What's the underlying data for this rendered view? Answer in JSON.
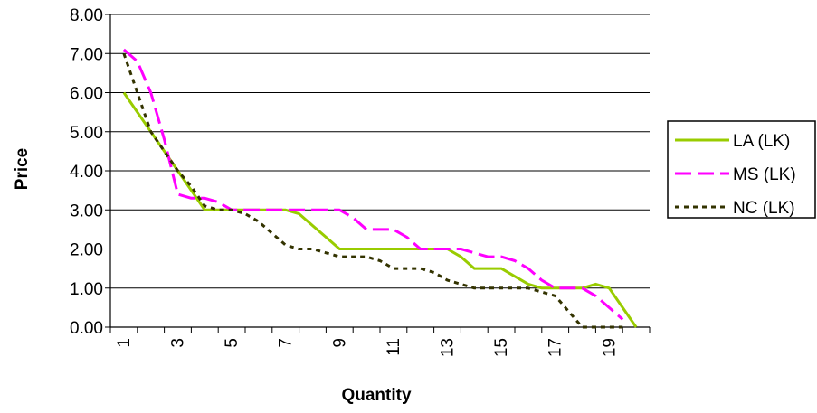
{
  "chart_data": {
    "type": "line",
    "xlabel": "Quantity",
    "ylabel": "Price",
    "ylim": [
      0,
      8
    ],
    "y_ticks": [
      "0.00",
      "1.00",
      "2.00",
      "3.00",
      "4.00",
      "5.00",
      "6.00",
      "7.00",
      "8.00"
    ],
    "x_tick_labels": [
      "1",
      "3",
      "5",
      "7",
      "9",
      "11",
      "13",
      "15",
      "17",
      "19"
    ],
    "grid": "horizontal",
    "legend_position": "right",
    "series": [
      {
        "name": "LA (LK)",
        "color": "#99CC00",
        "style": "solid",
        "points": [
          [
            1,
            6.0
          ],
          [
            1.5,
            5.5
          ],
          [
            2,
            5.0
          ],
          [
            2.5,
            4.5
          ],
          [
            3,
            4.0
          ],
          [
            3.5,
            3.5
          ],
          [
            4,
            3.0
          ],
          [
            4.5,
            3.0
          ],
          [
            5,
            3.0
          ],
          [
            5.5,
            3.0
          ],
          [
            6,
            3.0
          ],
          [
            6.5,
            3.0
          ],
          [
            7,
            3.0
          ],
          [
            7.5,
            2.9
          ],
          [
            8,
            2.6
          ],
          [
            8.5,
            2.3
          ],
          [
            9,
            2.0
          ],
          [
            9.5,
            2.0
          ],
          [
            10,
            2.0
          ],
          [
            10.5,
            2.0
          ],
          [
            11,
            2.0
          ],
          [
            11.5,
            2.0
          ],
          [
            12,
            2.0
          ],
          [
            12.5,
            2.0
          ],
          [
            13,
            2.0
          ],
          [
            13.5,
            1.8
          ],
          [
            14,
            1.5
          ],
          [
            14.5,
            1.5
          ],
          [
            15,
            1.5
          ],
          [
            15.5,
            1.3
          ],
          [
            16,
            1.1
          ],
          [
            16.5,
            1.0
          ],
          [
            17,
            1.0
          ],
          [
            17.5,
            1.0
          ],
          [
            18,
            1.0
          ],
          [
            18.5,
            1.1
          ],
          [
            19,
            1.0
          ],
          [
            19.5,
            0.5
          ],
          [
            20,
            0.0
          ]
        ]
      },
      {
        "name": "MS (LK)",
        "color": "#FF00FF",
        "style": "dashed",
        "points": [
          [
            1,
            7.1
          ],
          [
            1.5,
            6.8
          ],
          [
            2,
            6.0
          ],
          [
            2.5,
            4.8
          ],
          [
            3,
            3.4
          ],
          [
            3.5,
            3.3
          ],
          [
            4,
            3.3
          ],
          [
            4.5,
            3.2
          ],
          [
            5,
            3.0
          ],
          [
            5.5,
            3.0
          ],
          [
            6,
            3.0
          ],
          [
            6.5,
            3.0
          ],
          [
            7,
            3.0
          ],
          [
            7.5,
            3.0
          ],
          [
            8,
            3.0
          ],
          [
            8.5,
            3.0
          ],
          [
            9,
            3.0
          ],
          [
            9.5,
            2.8
          ],
          [
            10,
            2.5
          ],
          [
            10.5,
            2.5
          ],
          [
            11,
            2.5
          ],
          [
            11.5,
            2.3
          ],
          [
            12,
            2.0
          ],
          [
            12.5,
            2.0
          ],
          [
            13,
            2.0
          ],
          [
            13.5,
            2.0
          ],
          [
            14,
            1.9
          ],
          [
            14.5,
            1.8
          ],
          [
            15,
            1.8
          ],
          [
            15.5,
            1.7
          ],
          [
            16,
            1.5
          ],
          [
            16.5,
            1.2
          ],
          [
            17,
            1.0
          ],
          [
            17.5,
            1.0
          ],
          [
            18,
            1.0
          ],
          [
            18.5,
            0.8
          ],
          [
            19,
            0.5
          ],
          [
            19.5,
            0.2
          ]
        ]
      },
      {
        "name": "NC (LK)",
        "color": "#333300",
        "style": "dotted",
        "points": [
          [
            1,
            7.0
          ],
          [
            1.5,
            6.0
          ],
          [
            2,
            5.0
          ],
          [
            2.5,
            4.5
          ],
          [
            3,
            4.0
          ],
          [
            3.5,
            3.6
          ],
          [
            4,
            3.1
          ],
          [
            4.5,
            3.0
          ],
          [
            5,
            3.0
          ],
          [
            5.5,
            2.9
          ],
          [
            6,
            2.7
          ],
          [
            6.5,
            2.4
          ],
          [
            7,
            2.1
          ],
          [
            7.5,
            2.0
          ],
          [
            8,
            2.0
          ],
          [
            8.5,
            1.9
          ],
          [
            9,
            1.8
          ],
          [
            9.5,
            1.8
          ],
          [
            10,
            1.8
          ],
          [
            10.5,
            1.7
          ],
          [
            11,
            1.5
          ],
          [
            11.5,
            1.5
          ],
          [
            12,
            1.5
          ],
          [
            12.5,
            1.4
          ],
          [
            13,
            1.2
          ],
          [
            13.5,
            1.1
          ],
          [
            14,
            1.0
          ],
          [
            14.5,
            1.0
          ],
          [
            15,
            1.0
          ],
          [
            15.5,
            1.0
          ],
          [
            16,
            1.0
          ],
          [
            16.5,
            0.9
          ],
          [
            17,
            0.8
          ],
          [
            17.5,
            0.4
          ],
          [
            18,
            0.0
          ],
          [
            18.5,
            0.0
          ],
          [
            19,
            0.0
          ],
          [
            19.5,
            0.0
          ]
        ]
      }
    ]
  }
}
